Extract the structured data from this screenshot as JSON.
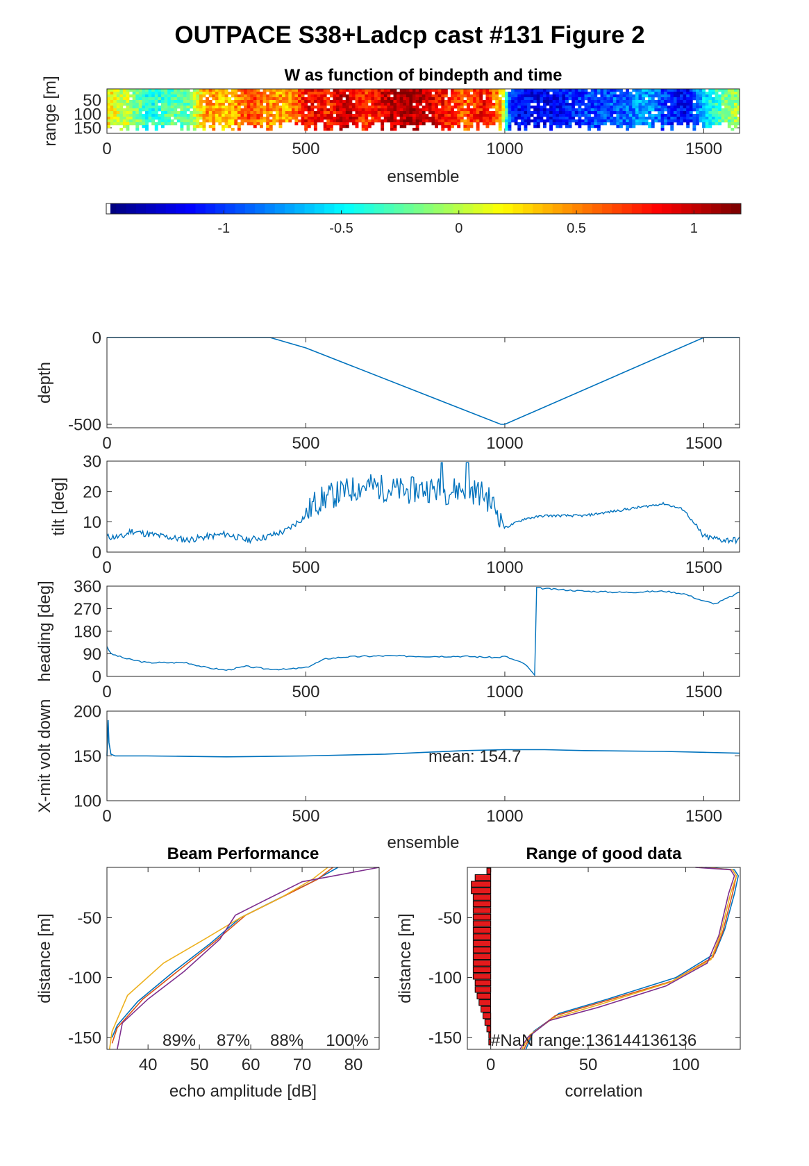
{
  "figure_title": "OUTPACE S38+Ladcp cast #131 Figure 2",
  "colors": {
    "line": "#0072BD",
    "bar_fill": "#e41a1c",
    "beam": [
      "#0072BD",
      "#D95319",
      "#EDB120",
      "#7E2F8E"
    ]
  },
  "chart_data": [
    {
      "id": "w_panel",
      "type": "heatmap",
      "title": "W as function of bindepth and time",
      "xlabel": "ensemble",
      "ylabel": "range [m]",
      "xlim": [
        0,
        1590
      ],
      "ylim": [
        10,
        170
      ],
      "y_reversed": true,
      "xticks": [
        0,
        500,
        1000,
        1500
      ],
      "yticks": [
        50,
        100,
        150
      ],
      "colormap": "jet",
      "column_mean_w": [
        {
          "x": 0,
          "w": 0.2
        },
        {
          "x": 50,
          "w": 0.0
        },
        {
          "x": 100,
          "w": -0.4
        },
        {
          "x": 200,
          "w": -0.2
        },
        {
          "x": 250,
          "w": 0.5
        },
        {
          "x": 300,
          "w": 0.3
        },
        {
          "x": 350,
          "w": 0.7
        },
        {
          "x": 400,
          "w": 0.5
        },
        {
          "x": 450,
          "w": 0.4
        },
        {
          "x": 500,
          "w": 0.9
        },
        {
          "x": 550,
          "w": 0.8
        },
        {
          "x": 600,
          "w": 1.0
        },
        {
          "x": 650,
          "w": 0.7
        },
        {
          "x": 700,
          "w": 1.0
        },
        {
          "x": 750,
          "w": 1.1
        },
        {
          "x": 800,
          "w": 1.0
        },
        {
          "x": 850,
          "w": 0.8
        },
        {
          "x": 900,
          "w": 0.6
        },
        {
          "x": 950,
          "w": 0.9
        },
        {
          "x": 990,
          "w": 0.3
        },
        {
          "x": 1010,
          "w": -1.1
        },
        {
          "x": 1100,
          "w": -1.2
        },
        {
          "x": 1200,
          "w": -1.0
        },
        {
          "x": 1300,
          "w": -0.9
        },
        {
          "x": 1350,
          "w": -0.7
        },
        {
          "x": 1400,
          "w": -1.0
        },
        {
          "x": 1450,
          "w": -1.2
        },
        {
          "x": 1500,
          "w": -0.6
        },
        {
          "x": 1550,
          "w": -0.2
        },
        {
          "x": 1590,
          "w": 0.0
        }
      ]
    },
    {
      "id": "colorbar",
      "type": "colorbar",
      "clim": [
        -1.5,
        1.2
      ],
      "ticks": [
        -1,
        -0.5,
        0,
        0.5,
        1
      ],
      "tick_labels": [
        "-1",
        "-0.5",
        "0",
        "0.5",
        "1"
      ]
    },
    {
      "id": "depth_panel",
      "type": "line",
      "xlabel": "",
      "ylabel": "depth",
      "xlim": [
        0,
        1590
      ],
      "ylim": [
        -520,
        0
      ],
      "xticks": [
        0,
        500,
        1000,
        1500
      ],
      "yticks": [
        0,
        -500
      ],
      "series": [
        {
          "x": [
            0,
            410,
            500,
            990,
            1000,
            1500,
            1590
          ],
          "y": [
            0,
            0,
            -60,
            -500,
            -500,
            0,
            0
          ]
        }
      ]
    },
    {
      "id": "tilt_panel",
      "type": "line",
      "xlabel": "",
      "ylabel": "tilt [deg]",
      "xlim": [
        0,
        1590
      ],
      "ylim": [
        0,
        30
      ],
      "xticks": [
        0,
        500,
        1000,
        1500
      ],
      "yticks": [
        0,
        10,
        20,
        30
      ],
      "series": [
        {
          "x": [
            0,
            40,
            60,
            100,
            150,
            200,
            250,
            300,
            350,
            400,
            450,
            500,
            520,
            550,
            600,
            650,
            700,
            750,
            800,
            850,
            900,
            950,
            990,
            1000,
            1050,
            1100,
            1150,
            1200,
            1250,
            1300,
            1350,
            1400,
            1450,
            1500,
            1550,
            1590
          ],
          "y": [
            5,
            5,
            7,
            6,
            5,
            4,
            5,
            6,
            4,
            5,
            7,
            12,
            16,
            18,
            20,
            22,
            21,
            20,
            21,
            20,
            21,
            19,
            12,
            8,
            11,
            12,
            12,
            12,
            13,
            14,
            15,
            16,
            14,
            5,
            4,
            4
          ]
        }
      ]
    },
    {
      "id": "heading_panel",
      "type": "line",
      "xlabel": "",
      "ylabel": "heading [deg]",
      "xlim": [
        0,
        1590
      ],
      "ylim": [
        0,
        360
      ],
      "xticks": [
        0,
        500,
        1000,
        1500
      ],
      "yticks": [
        0,
        90,
        180,
        270,
        360
      ],
      "series": [
        {
          "x": [
            0,
            10,
            50,
            100,
            150,
            200,
            250,
            300,
            350,
            400,
            450,
            500,
            550,
            600,
            700,
            800,
            900,
            980,
            1000,
            1050,
            1075,
            1080,
            1085,
            1100,
            1200,
            1300,
            1400,
            1450,
            1500,
            1530,
            1590
          ],
          "y": [
            120,
            90,
            70,
            55,
            55,
            55,
            35,
            25,
            40,
            30,
            28,
            35,
            70,
            78,
            82,
            80,
            80,
            75,
            80,
            50,
            5,
            355,
            352,
            350,
            340,
            335,
            340,
            330,
            300,
            290,
            335
          ]
        }
      ]
    },
    {
      "id": "voltage_panel",
      "type": "line",
      "xlabel": "ensemble",
      "ylabel": "X-mit volt down",
      "xlim": [
        0,
        1590
      ],
      "ylim": [
        100,
        200
      ],
      "xticks": [
        0,
        500,
        1000,
        1500
      ],
      "yticks": [
        100,
        150,
        200
      ],
      "annotation": "mean: 154.7",
      "series": [
        {
          "x": [
            0,
            3,
            5,
            10,
            20,
            100,
            300,
            500,
            700,
            800,
            900,
            1000,
            1100,
            1200,
            1400,
            1500,
            1590
          ],
          "y": [
            150,
            190,
            165,
            152,
            150,
            150,
            149,
            150,
            152,
            154,
            156,
            157,
            157,
            156,
            155,
            154,
            153
          ]
        }
      ]
    },
    {
      "id": "beam_panel",
      "type": "line",
      "title": "Beam Performance",
      "xlabel": "echo amplitude [dB]",
      "ylabel": "distance [m]",
      "xlim": [
        32,
        85
      ],
      "ylim": [
        -160,
        -8
      ],
      "xticks": [
        40,
        50,
        60,
        70,
        80
      ],
      "yticks": [
        -50,
        -100,
        -150
      ],
      "annotations": [
        "89%",
        "87%",
        "88%",
        "100%"
      ],
      "series": [
        {
          "x": [
            33,
            34,
            38,
            45,
            52,
            58,
            65,
            72,
            77
          ],
          "y": [
            -150,
            -140,
            -120,
            -95,
            -72,
            -50,
            -35,
            -20,
            -8
          ]
        },
        {
          "x": [
            33,
            34,
            39,
            46,
            53,
            59,
            66,
            73,
            76
          ],
          "y": [
            -155,
            -142,
            -118,
            -94,
            -70,
            -48,
            -33,
            -18,
            -8
          ]
        },
        {
          "x": [
            32.5,
            33,
            36,
            43,
            51,
            58,
            66,
            72,
            75
          ],
          "y": [
            -160,
            -145,
            -115,
            -88,
            -68,
            -50,
            -33,
            -18,
            -8
          ]
        },
        {
          "x": [
            34,
            35,
            40,
            47,
            54,
            57,
            63,
            70,
            85
          ],
          "y": [
            -160,
            -138,
            -118,
            -95,
            -68,
            -48,
            -35,
            -20,
            -8
          ]
        }
      ]
    },
    {
      "id": "range_panel",
      "type": "line",
      "title": "Range of good data",
      "xlabel": "correlation",
      "ylabel": "distance [m]",
      "xlim": [
        -12,
        128
      ],
      "ylim": [
        -160,
        -8
      ],
      "xticks": [
        0,
        50,
        100
      ],
      "yticks": [
        -50,
        -100,
        -150
      ],
      "annotation": "#NaN range:136144136136",
      "bar_values": [
        -2,
        -8,
        -10,
        -10,
        -9,
        -9,
        -9,
        -9,
        -9,
        -9,
        -9,
        -9,
        -9,
        -9,
        -9,
        -9,
        -9,
        -8,
        -8,
        -7,
        -6,
        -5,
        -4,
        -3,
        -2,
        -1,
        -1
      ],
      "bar_distances": [
        -11,
        -16.5,
        -22,
        -27.5,
        -33,
        -38.5,
        -44,
        -49.5,
        -55,
        -60.5,
        -66,
        -71.5,
        -77,
        -82.5,
        -88,
        -93.5,
        -99,
        -104.5,
        -110,
        -115.5,
        -121,
        -126.5,
        -132,
        -137.5,
        -143,
        -148.5,
        -154
      ],
      "series": [
        {
          "x": [
            18,
            22,
            35,
            60,
            95,
            115,
            120,
            125,
            127,
            125,
            110
          ],
          "y": [
            -160,
            -145,
            -130,
            -118,
            -100,
            -80,
            -60,
            -30,
            -15,
            -10,
            -8
          ]
        },
        {
          "x": [
            17,
            21,
            33,
            58,
            93,
            114,
            119,
            124,
            126,
            124,
            108
          ],
          "y": [
            -160,
            -147,
            -132,
            -120,
            -103,
            -83,
            -62,
            -30,
            -15,
            -10,
            -8
          ]
        },
        {
          "x": [
            16,
            20,
            32,
            57,
            92,
            113,
            118,
            123,
            126,
            124,
            107
          ],
          "y": [
            -160,
            -148,
            -134,
            -122,
            -104,
            -85,
            -63,
            -30,
            -15,
            -10,
            -8
          ]
        },
        {
          "x": [
            15,
            19,
            30,
            55,
            90,
            111,
            117,
            122,
            125,
            123,
            105
          ],
          "y": [
            -160,
            -150,
            -136,
            -125,
            -107,
            -88,
            -65,
            -30,
            -15,
            -10,
            -8
          ]
        }
      ]
    }
  ]
}
